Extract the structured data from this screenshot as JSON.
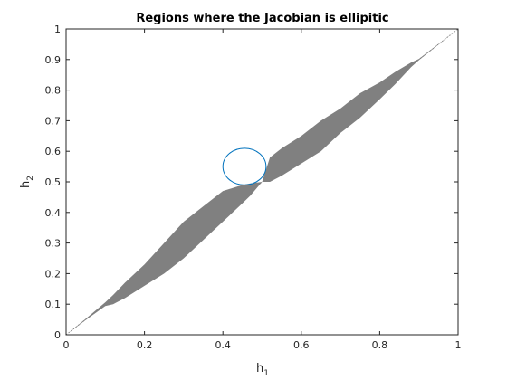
{
  "chart_data": {
    "type": "scatter",
    "title": "Regions where the Jacobian is ellipitic",
    "xlabel": {
      "base": "h",
      "sub": "1"
    },
    "ylabel": {
      "base": "h",
      "sub": "2"
    },
    "xlim": [
      0,
      1
    ],
    "ylim": [
      0,
      1
    ],
    "grid": false,
    "x_ticks": [
      "0",
      "0.2",
      "0.4",
      "0.6",
      "0.8",
      "1"
    ],
    "x_tick_values": [
      0,
      0.2,
      0.4,
      0.6,
      0.8,
      1
    ],
    "y_ticks": [
      "0",
      "0.1",
      "0.2",
      "0.3",
      "0.4",
      "0.5",
      "0.6",
      "0.7",
      "0.8",
      "0.9",
      "1"
    ],
    "y_tick_values": [
      0,
      0.1,
      0.2,
      0.3,
      0.4,
      0.5,
      0.6,
      0.7,
      0.8,
      0.9,
      1
    ],
    "elliptic_region": {
      "color": "#808080",
      "profile": [
        {
          "h1": 0.0,
          "lower": 0.0,
          "upper": 0.0
        },
        {
          "h1": 0.05,
          "lower": 0.048,
          "upper": 0.052
        },
        {
          "h1": 0.1,
          "lower": 0.094,
          "upper": 0.106
        },
        {
          "h1": 0.12,
          "lower": 0.1,
          "upper": 0.13
        },
        {
          "h1": 0.15,
          "lower": 0.12,
          "upper": 0.17
        },
        {
          "h1": 0.2,
          "lower": 0.16,
          "upper": 0.23
        },
        {
          "h1": 0.25,
          "lower": 0.2,
          "upper": 0.3
        },
        {
          "h1": 0.3,
          "lower": 0.25,
          "upper": 0.37
        },
        {
          "h1": 0.35,
          "lower": 0.31,
          "upper": 0.42
        },
        {
          "h1": 0.4,
          "lower": 0.37,
          "upper": 0.47
        },
        {
          "h1": 0.45,
          "lower": 0.43,
          "upper": 0.49
        },
        {
          "h1": 0.47,
          "lower": 0.455,
          "upper": 0.495
        },
        {
          "h1": 0.5,
          "lower": 0.5,
          "upper": 0.5
        },
        {
          "h1": 0.52,
          "lower": 0.5,
          "upper": 0.58
        },
        {
          "h1": 0.55,
          "lower": 0.52,
          "upper": 0.61
        },
        {
          "h1": 0.6,
          "lower": 0.56,
          "upper": 0.65
        },
        {
          "h1": 0.65,
          "lower": 0.6,
          "upper": 0.7
        },
        {
          "h1": 0.7,
          "lower": 0.66,
          "upper": 0.74
        },
        {
          "h1": 0.75,
          "lower": 0.71,
          "upper": 0.79
        },
        {
          "h1": 0.8,
          "lower": 0.77,
          "upper": 0.825
        },
        {
          "h1": 0.84,
          "lower": 0.82,
          "upper": 0.86
        },
        {
          "h1": 0.88,
          "lower": 0.875,
          "upper": 0.89
        },
        {
          "h1": 0.9,
          "lower": 0.898,
          "upper": 0.902
        },
        {
          "h1": 1.0,
          "lower": 1.0,
          "upper": 1.0
        }
      ]
    },
    "diagonal_line": {
      "x": [
        0,
        1
      ],
      "y": [
        0,
        1
      ],
      "color": "#808080",
      "style": "dotted"
    },
    "circle": {
      "cx": 0.455,
      "cy": 0.55,
      "rx": 0.055,
      "ry": 0.06,
      "color": "#0072BD"
    }
  }
}
